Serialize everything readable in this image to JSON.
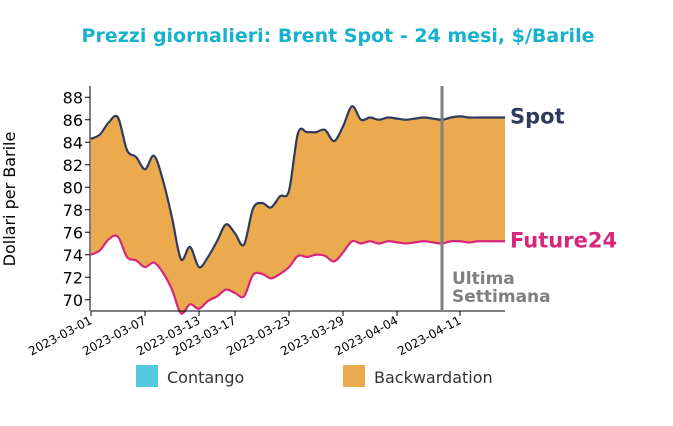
{
  "chart_data": {
    "type": "area",
    "title": "Prezzi giornalieri: Brent Spot - 24 mesi, $/Barile",
    "ylabel": "Dollari per Barile",
    "xlabel": "",
    "ylim": [
      69,
      89
    ],
    "yticks": [
      70,
      72,
      74,
      76,
      78,
      80,
      82,
      84,
      86,
      88
    ],
    "x_start": "2023-03-01",
    "x_end": "2023-04-16",
    "xticks": [
      "2023-03-01",
      "2023-03-07",
      "2023-03-13",
      "2023-03-17",
      "2023-03-23",
      "2023-03-29",
      "2023-04-04",
      "2023-04-11"
    ],
    "series": [
      {
        "name": "Spot",
        "color": "#2e3b5e",
        "x": [
          "2023-03-01",
          "2023-03-02",
          "2023-03-03",
          "2023-03-04",
          "2023-03-05",
          "2023-03-06",
          "2023-03-07",
          "2023-03-08",
          "2023-03-09",
          "2023-03-10",
          "2023-03-11",
          "2023-03-12",
          "2023-03-13",
          "2023-03-14",
          "2023-03-15",
          "2023-03-16",
          "2023-03-17",
          "2023-03-18",
          "2023-03-19",
          "2023-03-20",
          "2023-03-21",
          "2023-03-22",
          "2023-03-23",
          "2023-03-24",
          "2023-03-25",
          "2023-03-26",
          "2023-03-27",
          "2023-03-28",
          "2023-03-29",
          "2023-03-30",
          "2023-03-31",
          "2023-04-01",
          "2023-04-02",
          "2023-04-03",
          "2023-04-04",
          "2023-04-05",
          "2023-04-06",
          "2023-04-07",
          "2023-04-08",
          "2023-04-09",
          "2023-04-10",
          "2023-04-11",
          "2023-04-12",
          "2023-04-13",
          "2023-04-14",
          "2023-04-15",
          "2023-04-16"
        ],
        "values": [
          84.3,
          84.7,
          85.8,
          86.2,
          83.3,
          82.7,
          81.6,
          82.8,
          80.6,
          77.3,
          73.6,
          74.7,
          72.9,
          73.8,
          75.2,
          76.7,
          75.9,
          74.9,
          78.1,
          78.6,
          78.2,
          79.2,
          79.7,
          84.8,
          84.9,
          84.9,
          85.1,
          84.1,
          85.4,
          87.2,
          86.0,
          86.2,
          86.0,
          86.2,
          86.1,
          86.0,
          86.1,
          86.2,
          86.1,
          86.0,
          86.2,
          86.3,
          86.2,
          86.2,
          86.2,
          86.2,
          86.2
        ]
      },
      {
        "name": "Future24",
        "color": "#d6277b",
        "x": [
          "2023-03-01",
          "2023-03-02",
          "2023-03-03",
          "2023-03-04",
          "2023-03-05",
          "2023-03-06",
          "2023-03-07",
          "2023-03-08",
          "2023-03-09",
          "2023-03-10",
          "2023-03-11",
          "2023-03-12",
          "2023-03-13",
          "2023-03-14",
          "2023-03-15",
          "2023-03-16",
          "2023-03-17",
          "2023-03-18",
          "2023-03-19",
          "2023-03-20",
          "2023-03-21",
          "2023-03-22",
          "2023-03-23",
          "2023-03-24",
          "2023-03-25",
          "2023-03-26",
          "2023-03-27",
          "2023-03-28",
          "2023-03-29",
          "2023-03-30",
          "2023-03-31",
          "2023-04-01",
          "2023-04-02",
          "2023-04-03",
          "2023-04-04",
          "2023-04-05",
          "2023-04-06",
          "2023-04-07",
          "2023-04-08",
          "2023-04-09",
          "2023-04-10",
          "2023-04-11",
          "2023-04-12",
          "2023-04-13",
          "2023-04-14",
          "2023-04-15",
          "2023-04-16"
        ],
        "values": [
          74.0,
          74.4,
          75.4,
          75.6,
          73.8,
          73.5,
          72.9,
          73.3,
          72.4,
          70.9,
          68.8,
          69.6,
          69.2,
          69.9,
          70.3,
          70.9,
          70.6,
          70.3,
          72.2,
          72.3,
          71.9,
          72.3,
          72.9,
          73.9,
          73.8,
          74.0,
          73.9,
          73.4,
          74.2,
          75.2,
          75.0,
          75.2,
          75.0,
          75.2,
          75.1,
          75.0,
          75.1,
          75.2,
          75.1,
          75.0,
          75.2,
          75.2,
          75.1,
          75.2,
          75.2,
          75.2,
          75.2
        ]
      }
    ],
    "fill_regions": [
      {
        "name": "Contango",
        "color": "#56c8e0"
      },
      {
        "name": "Backwardation",
        "color": "#ebaa4d"
      }
    ],
    "annotation": {
      "text_lines": [
        "Ultima",
        "Settimana"
      ],
      "x": "2023-04-09",
      "color": "#7f7f7f"
    },
    "legend_position": "bottom",
    "grid": false
  }
}
